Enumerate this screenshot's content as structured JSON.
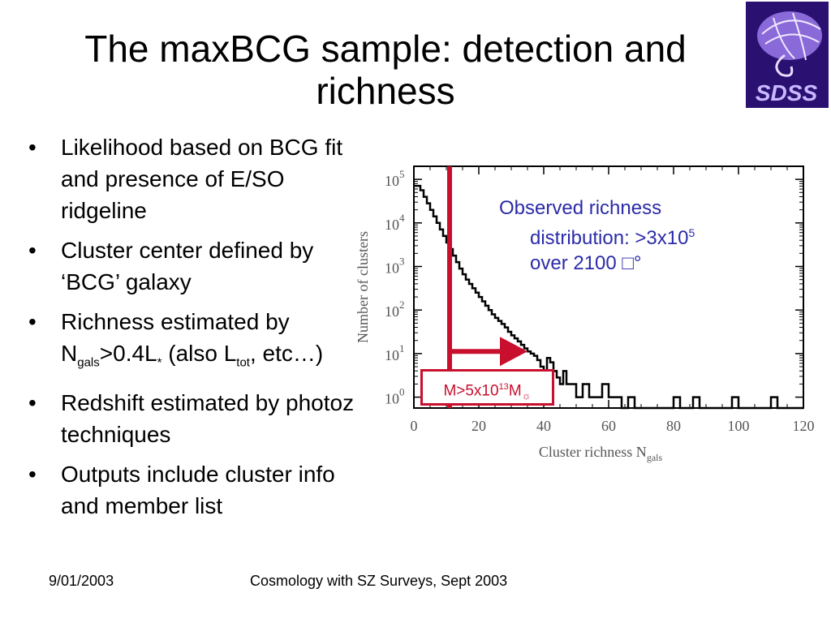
{
  "slide": {
    "title": "The maxBCG sample: detection and richness",
    "logo_text": "SDSS",
    "bullets": {
      "b1": "Likelihood based on BCG fit and presence of E/SO ridgeline",
      "b2": "Cluster center defined by ‘BCG’ galaxy",
      "b3_pre": "Richness estimated by N",
      "b3_sub1": "gals",
      "b3_mid": ">0.4L",
      "b3_sub2": "*",
      "b3_mid2": " (also L",
      "b3_sub3": "tot",
      "b3_post": ", etc…)",
      "b4": "Redshift estimated by photoz techniques",
      "b5": "Outputs include cluster info and member list"
    },
    "annotation": {
      "line1": "Observed richness",
      "line2": "distribution: >3x10",
      "line2_sup": "5",
      "line3": "over 2100 □°"
    },
    "mass_label": {
      "pre": "M>5x10",
      "sup": "13",
      "mid": "M",
      "sub": "☼"
    },
    "footer": {
      "date": "9/01/2003",
      "conference": "Cosmology with SZ Surveys, Sept 2003"
    }
  },
  "colors": {
    "line": "#000000",
    "accent": "#c8102e",
    "annotation": "#2b2ba8",
    "logo_bg": "#2a1070",
    "logo_disc": "#8a6ad8"
  },
  "chart_data": {
    "type": "line",
    "xlabel": "Cluster richness N",
    "xlabel_sub": "gals",
    "ylabel": "Number of clusters",
    "xlim": [
      0,
      120
    ],
    "ylim_log10": [
      -0.25,
      5.3
    ],
    "yscale": "log",
    "xticks": [
      0,
      20,
      40,
      60,
      80,
      100,
      120
    ],
    "yticks": [
      {
        "base": "10",
        "exp": "0",
        "log": 0
      },
      {
        "base": "10",
        "exp": "1",
        "log": 1
      },
      {
        "base": "10",
        "exp": "2",
        "log": 2
      },
      {
        "base": "10",
        "exp": "3",
        "log": 3
      },
      {
        "base": "10",
        "exp": "4",
        "log": 4
      },
      {
        "base": "10",
        "exp": "5",
        "log": 5
      }
    ],
    "series": [
      {
        "x": [
          0,
          1,
          2,
          3,
          4,
          5,
          6,
          7,
          8,
          9,
          10,
          11,
          12,
          13,
          14,
          15,
          16,
          17,
          18,
          19,
          20,
          21,
          22,
          23,
          24,
          25,
          26,
          27,
          28,
          29,
          30,
          31,
          32,
          33,
          34,
          35,
          36,
          37,
          38,
          39,
          40,
          41,
          42,
          43,
          44,
          45,
          46,
          47,
          48,
          49,
          50,
          52,
          54,
          56,
          58,
          60,
          62,
          64,
          66,
          68,
          70,
          72,
          74,
          76,
          78,
          80,
          82,
          84,
          86,
          88,
          90,
          92,
          94,
          96,
          98,
          100,
          102,
          104,
          106,
          108,
          110,
          112,
          114,
          116,
          118
        ],
        "log10_counts": [
          4.85,
          4.85,
          4.75,
          4.6,
          4.45,
          4.3,
          4.15,
          4.0,
          3.85,
          3.7,
          3.55,
          3.4,
          3.25,
          3.1,
          2.95,
          2.82,
          2.7,
          2.6,
          2.5,
          2.4,
          2.3,
          2.2,
          2.1,
          2.0,
          1.9,
          1.82,
          1.75,
          1.68,
          1.6,
          1.5,
          1.42,
          1.35,
          1.28,
          1.2,
          1.12,
          1.05,
          1.0,
          0.95,
          0.85,
          0.7,
          0.6,
          0.9,
          0.8,
          0.6,
          0.45,
          0.3,
          0.6,
          0.3,
          0.3,
          0.3,
          0.0,
          0.3,
          0.0,
          0.0,
          0.3,
          0.0,
          0.0,
          -0.3,
          0.0,
          -0.3,
          -0.3,
          -0.3,
          -0.3,
          -0.3,
          -0.3,
          0.0,
          -0.3,
          -0.3,
          0.0,
          -0.3,
          -0.3,
          -0.3,
          -0.3,
          -0.3,
          0.0,
          -0.3,
          -0.3,
          -0.3,
          -0.3,
          -0.3,
          0.0,
          -0.3,
          -0.3,
          -0.3,
          -0.3
        ]
      }
    ],
    "markers": {
      "cut_x": 11,
      "arrow_from_x": 11,
      "arrow_to_x": 32,
      "arrow_log10_y": 1.05
    }
  }
}
